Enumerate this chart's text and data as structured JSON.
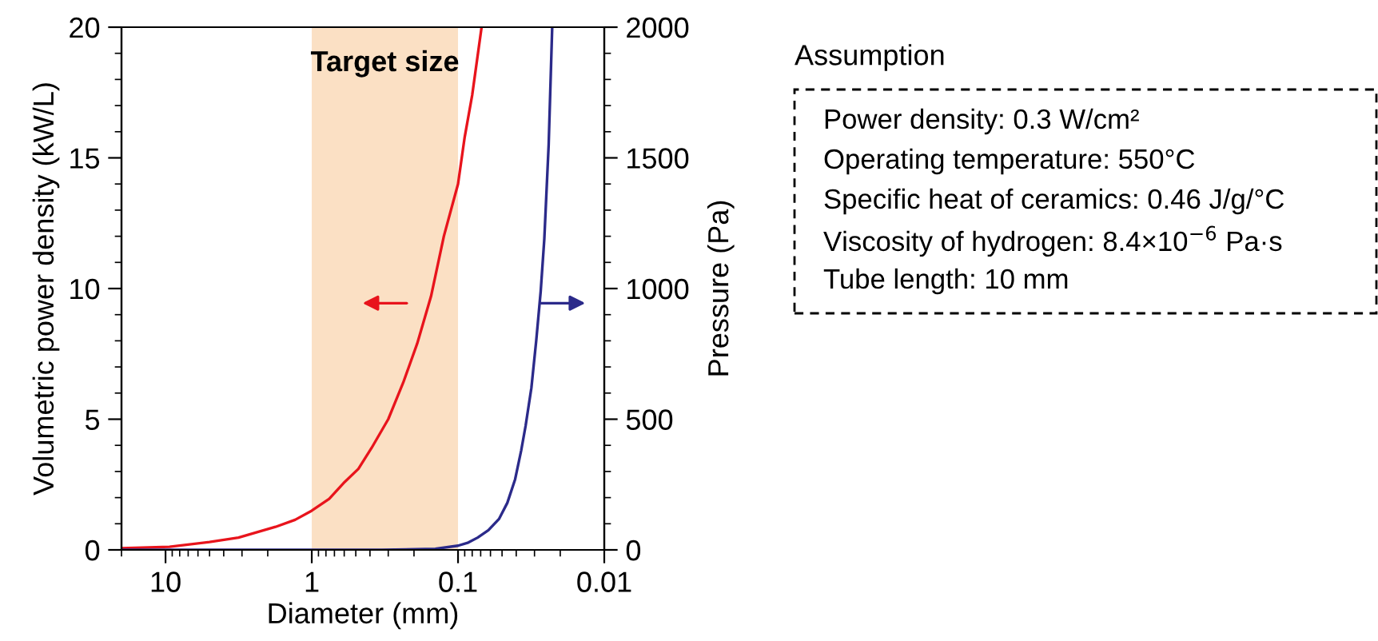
{
  "chart_data": {
    "type": "line",
    "xlabel": "Diameter (mm)",
    "ylabel": "Volumetric power density (kW/L)",
    "y2label": "Pressure (Pa)",
    "log": "x",
    "xlim": [
      20,
      0.01
    ],
    "xticks": [
      10,
      1,
      0.1,
      0.01
    ],
    "ylim": [
      0,
      20
    ],
    "yticks": [
      0,
      5,
      10,
      15,
      20
    ],
    "y2lim": [
      0,
      2000
    ],
    "y2ticks": [
      0,
      500,
      1000,
      1500,
      2000
    ],
    "series": [
      {
        "color": "#e8141c",
        "x": [
          20,
          9.4,
          5,
          3.17,
          1.77,
          1.3,
          1,
          0.76,
          0.595,
          0.48,
          0.39,
          0.3,
          0.237,
          0.19,
          0.153,
          0.125,
          0.1,
          0.09,
          0.08,
          0.069
        ],
        "values": [
          0.06,
          0.12,
          0.3,
          0.47,
          0.88,
          1.15,
          1.5,
          1.95,
          2.6,
          3.1,
          3.9,
          5.0,
          6.4,
          7.9,
          9.7,
          12.0,
          14.0,
          15.8,
          17.4,
          20
        ]
      },
      {
        "color": "#2b2a8a",
        "axis": "y2",
        "x": [
          20,
          1,
          0.331,
          0.143,
          0.1,
          0.085,
          0.0734,
          0.062,
          0.0525,
          0.046,
          0.0407,
          0.037,
          0.0345,
          0.0315,
          0.0292,
          0.0272,
          0.0257,
          0.024,
          0.0227
        ],
        "values": [
          0,
          0,
          0,
          4,
          16,
          28,
          47,
          75,
          118,
          180,
          270,
          380,
          475,
          620,
          800,
          990,
          1190,
          1550,
          2000
        ]
      }
    ],
    "bands": [
      {
        "axis": "x",
        "from": 1,
        "to": 0.1,
        "label": "Target size",
        "color": "#fbe0c4"
      }
    ],
    "marker": "none",
    "line_style": "solid",
    "grid": false,
    "legend": false,
    "annotations": [
      "Assumption",
      "Power density: 0.3 W/cm²",
      "Operating temperature: 550°C",
      "Specific heat of ceramics: 0.46 J/g/°C",
      "Viscosity of hydrogen: 8.4×10$^{−6}$ Pa·s",
      "Tube length: 10 mm"
    ]
  }
}
